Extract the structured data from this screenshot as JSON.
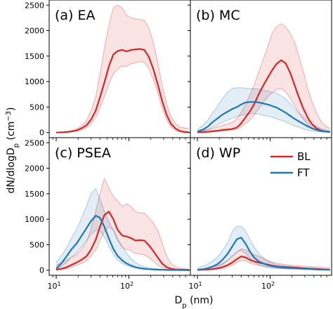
{
  "chart_data": {
    "type": "line",
    "xscale": "log",
    "xlim": [
      8,
      700
    ],
    "ylim": [
      -100,
      2600
    ],
    "xlabel_base": "D",
    "xlabel_sub": "p",
    "xlabel_unit": " (nm)",
    "ylabel_base": "dN/dlogD",
    "ylabel_sub": "p",
    "ylabel_unit_open": " (cm",
    "ylabel_unit_sup": "−3",
    "ylabel_unit_close": ")",
    "x_ticks": [
      {
        "value": 10,
        "base": "10",
        "exp": "1"
      },
      {
        "value": 100,
        "base": "10",
        "exp": "2"
      }
    ],
    "y_ticks": [
      0,
      500,
      1000,
      1500,
      2000,
      2500
    ],
    "colors": {
      "BL": "#d62728",
      "FT": "#1f77b4"
    },
    "legend": {
      "placement": "upper-right of panel (d)",
      "entries": [
        "BL",
        "FT"
      ]
    },
    "x": [
      10,
      12,
      14,
      16,
      19,
      22,
      26,
      30,
      35,
      40,
      46,
      53,
      61,
      70,
      81,
      93,
      107,
      123,
      142,
      163,
      188,
      216,
      249,
      286,
      329,
      379,
      436,
      502,
      578,
      665
    ],
    "panels": [
      {
        "label": "(a) EA",
        "series": [
          {
            "name": "BL",
            "median": [
              0,
              5,
              10,
              20,
              40,
              80,
              140,
              250,
              430,
              690,
              980,
              1300,
              1530,
              1600,
              1620,
              1590,
              1620,
              1630,
              1640,
              1620,
              1480,
              1250,
              950,
              620,
              350,
              170,
              80,
              30,
              10,
              5
            ],
            "lower": [
              0,
              3,
              6,
              12,
              25,
              50,
              90,
              170,
              300,
              480,
              700,
              950,
              1150,
              1250,
              1300,
              1300,
              1350,
              1370,
              1390,
              1380,
              1260,
              1050,
              780,
              480,
              250,
              110,
              40,
              15,
              5,
              2
            ],
            "upper": [
              0,
              10,
              20,
              40,
              70,
              130,
              230,
              420,
              700,
              1150,
              1650,
              2100,
              2450,
              2500,
              2440,
              2300,
              2250,
              2230,
              2220,
              2200,
              2050,
              1780,
              1380,
              930,
              560,
              310,
              180,
              110,
              90,
              80
            ]
          }
        ]
      },
      {
        "label": "(b) MC",
        "series": [
          {
            "name": "BL",
            "median": [
              5,
              10,
              15,
              25,
              35,
              50,
              60,
              70,
              100,
              180,
              300,
              420,
              570,
              760,
              930,
              1080,
              1230,
              1350,
              1420,
              1360,
              1180,
              940,
              690,
              470,
              290,
              160,
              80,
              40,
              20,
              10
            ],
            "lower": [
              2,
              5,
              8,
              15,
              20,
              30,
              40,
              50,
              70,
              110,
              180,
              250,
              350,
              480,
              600,
              700,
              780,
              850,
              860,
              800,
              680,
              530,
              390,
              260,
              160,
              90,
              40,
              20,
              10,
              5
            ],
            "upper": [
              20,
              40,
              60,
              80,
              110,
              140,
              170,
              200,
              270,
              400,
              550,
              750,
              950,
              1200,
              1450,
              1700,
              1950,
              2080,
              2130,
              2080,
              1950,
              1780,
              1500,
              1200,
              850,
              600,
              380,
              220,
              130,
              80
            ]
          },
          {
            "name": "FT",
            "median": [
              20,
              60,
              120,
              200,
              280,
              350,
              410,
              460,
              500,
              550,
              590,
              600,
              600,
              590,
              570,
              550,
              520,
              490,
              440,
              390,
              330,
              270,
              220,
              170,
              120,
              80,
              50,
              30,
              20,
              10
            ],
            "lower": [
              5,
              20,
              50,
              100,
              150,
              200,
              240,
              280,
              310,
              340,
              360,
              370,
              370,
              360,
              340,
              320,
              300,
              270,
              240,
              210,
              170,
              130,
              100,
              70,
              50,
              30,
              20,
              10,
              5,
              2
            ],
            "upper": [
              60,
              150,
              250,
              380,
              520,
              660,
              790,
              860,
              880,
              880,
              870,
              860,
              860,
              850,
              830,
              810,
              790,
              770,
              720,
              660,
              570,
              470,
              380,
              300,
              230,
              170,
              120,
              80,
              50,
              30
            ]
          }
        ]
      },
      {
        "label": "(c) PSEA",
        "series": [
          {
            "name": "BL",
            "median": [
              10,
              30,
              60,
              100,
              150,
              200,
              270,
              400,
              600,
              850,
              1080,
              1150,
              1000,
              790,
              680,
              660,
              630,
              580,
              590,
              580,
              490,
              380,
              250,
              130,
              60,
              30,
              15,
              10,
              8,
              5
            ],
            "lower": [
              5,
              15,
              30,
              60,
              90,
              130,
              180,
              270,
              400,
              580,
              760,
              850,
              780,
              580,
              450,
              400,
              380,
              330,
              320,
              300,
              250,
              180,
              100,
              50,
              20,
              10,
              5,
              3,
              2,
              1
            ],
            "upper": [
              100,
              150,
              200,
              250,
              300,
              400,
              550,
              800,
              1150,
              1500,
              1800,
              1600,
              1450,
              1350,
              1250,
              1300,
              1250,
              1150,
              1120,
              1120,
              1030,
              930,
              780,
              530,
              280,
              140,
              70,
              40,
              30,
              20
            ],
            "lower_box": true
          },
          {
            "name": "FT",
            "median": [
              30,
              150,
              280,
              400,
              520,
              660,
              820,
              960,
              1070,
              1030,
              850,
              620,
              420,
              280,
              190,
              130,
              90,
              60,
              40,
              30,
              20,
              15,
              10,
              8,
              5,
              4,
              3,
              2,
              2,
              1
            ],
            "lower": [
              10,
              80,
              160,
              250,
              340,
              450,
              580,
              700,
              780,
              780,
              650,
              470,
              310,
              200,
              130,
              90,
              60,
              40,
              25,
              15,
              10,
              8,
              5,
              3,
              2,
              1,
              1,
              1,
              0,
              0
            ],
            "upper": [
              150,
              300,
              450,
              620,
              800,
              1000,
              1250,
              1500,
              1600,
              1400,
              1150,
              950,
              800,
              620,
              460,
              330,
              220,
              150,
              100,
              70,
              50,
              35,
              25,
              20,
              15,
              10,
              8,
              5,
              3,
              2
            ]
          }
        ]
      },
      {
        "label": "(d) WP",
        "series": [
          {
            "name": "BL",
            "median": [
              5,
              10,
              15,
              20,
              35,
              60,
              100,
              150,
              220,
              270,
              250,
              200,
              170,
              150,
              130,
              110,
              90,
              75,
              65,
              60,
              55,
              50,
              45,
              40,
              35,
              30,
              25,
              20,
              15,
              10
            ],
            "lower": [
              2,
              5,
              8,
              10,
              20,
              35,
              60,
              100,
              150,
              190,
              180,
              140,
              110,
              95,
              80,
              65,
              50,
              40,
              35,
              30,
              28,
              25,
              22,
              20,
              18,
              15,
              12,
              10,
              8,
              5
            ],
            "upper": [
              20,
              30,
              40,
              60,
              90,
              130,
              190,
              260,
              350,
              420,
              400,
              350,
              300,
              270,
              230,
              190,
              160,
              140,
              120,
              110,
              100,
              90,
              85,
              80,
              75,
              70,
              65,
              60,
              50,
              40
            ]
          },
          {
            "name": "FT",
            "median": [
              5,
              20,
              40,
              70,
              120,
              200,
              320,
              460,
              610,
              640,
              520,
              360,
              240,
              170,
              130,
              100,
              80,
              65,
              55,
              50,
              45,
              40,
              35,
              30,
              25,
              20,
              15,
              12,
              10,
              8
            ],
            "lower": [
              2,
              8,
              15,
              30,
              60,
              110,
              190,
              280,
              360,
              390,
              330,
              230,
              150,
              100,
              70,
              55,
              45,
              35,
              30,
              25,
              22,
              20,
              18,
              15,
              12,
              10,
              8,
              6,
              5,
              4
            ],
            "upper": [
              40,
              80,
              120,
              180,
              260,
              380,
              540,
              750,
              860,
              860,
              770,
              600,
              440,
              320,
              240,
              180,
              140,
              110,
              95,
              85,
              75,
              65,
              55,
              45,
              38,
              30,
              25,
              20,
              15,
              12
            ]
          }
        ]
      }
    ]
  }
}
